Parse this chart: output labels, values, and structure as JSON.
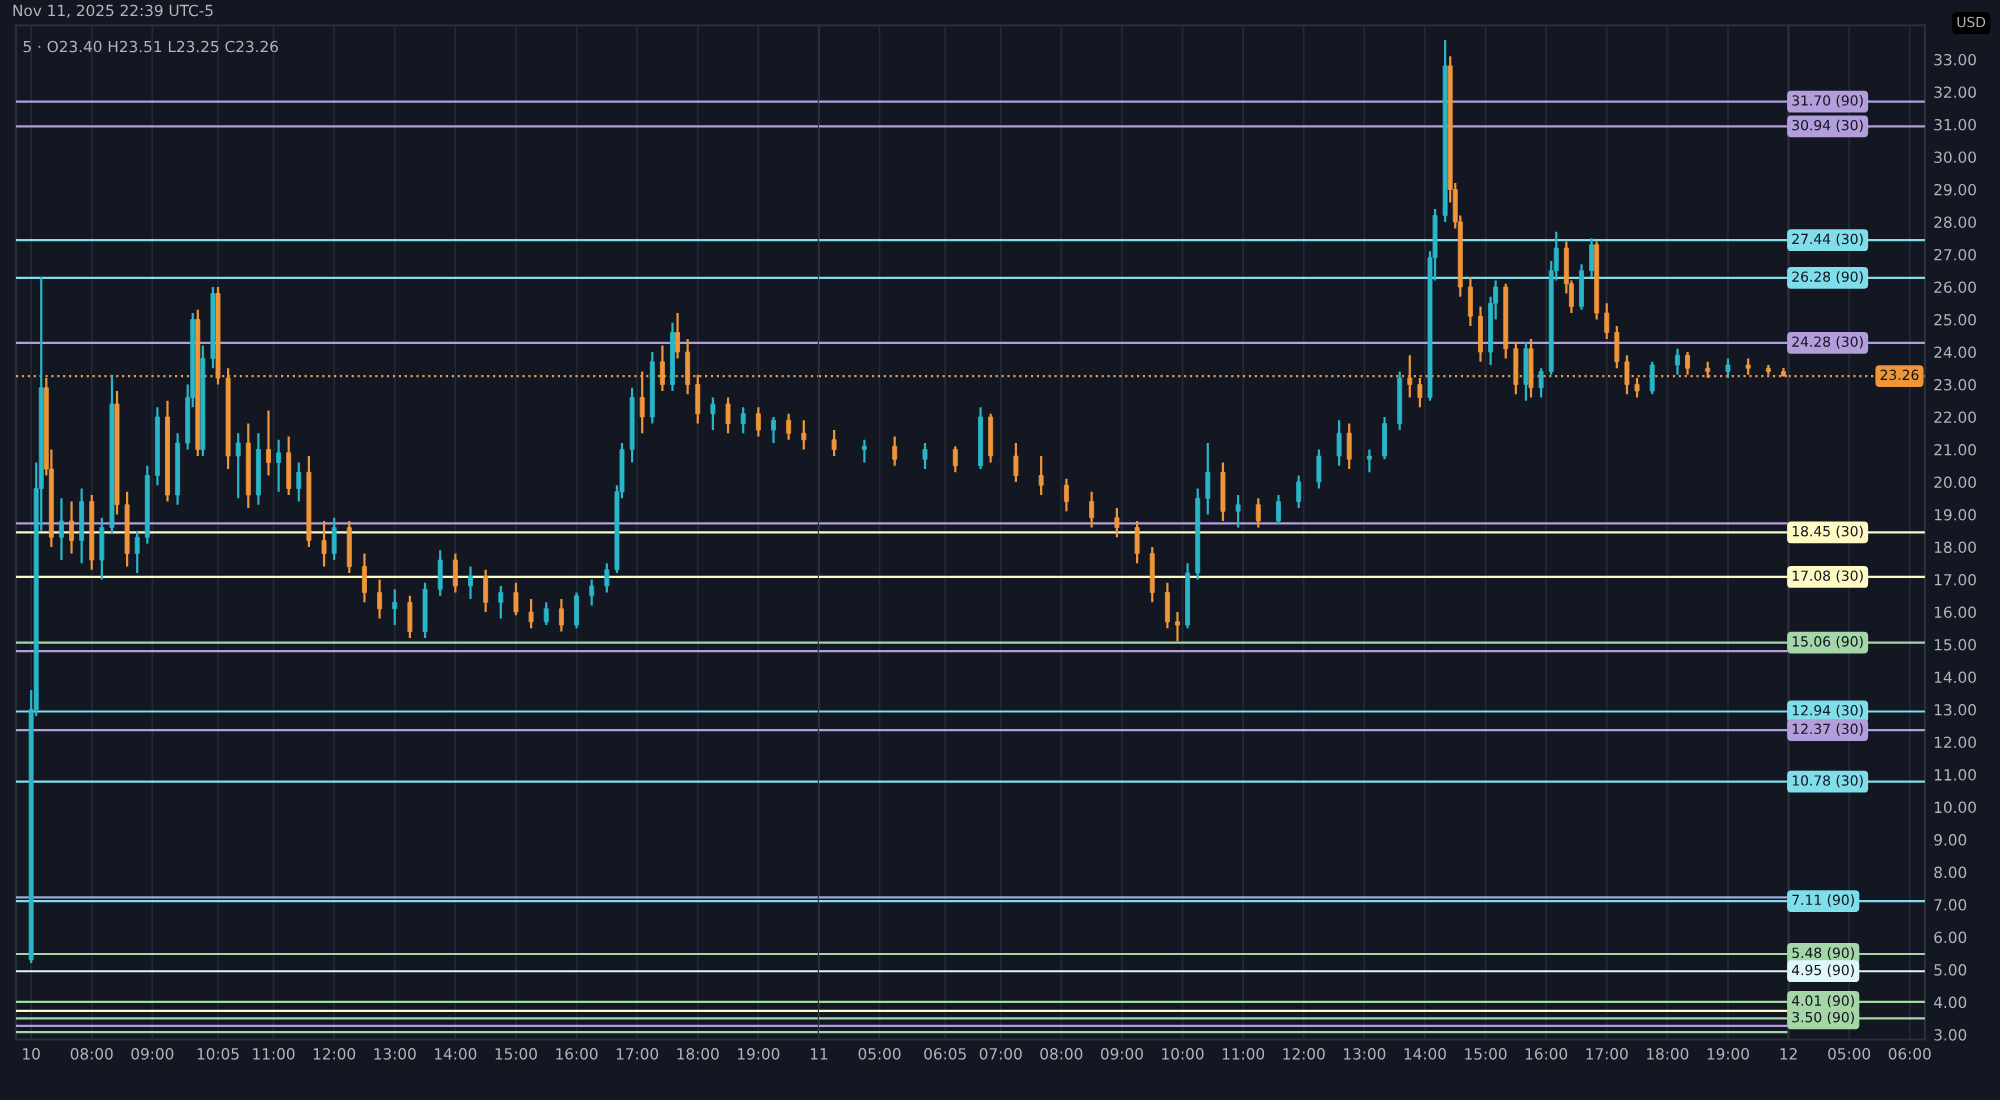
{
  "chart_data": [
    {
      "type": "candlestick",
      "annotations": [
        "Nov 11, 2025 22:39 UTC-5",
        "5 · O23.40 H23.51 L23.25 C23.26"
      ],
      "x": [
        "2025-11-10T07:00",
        "2025-11-10T07:05",
        "2025-11-10T07:10",
        "2025-11-10T07:15",
        "2025-11-10T07:20",
        "2025-11-10T07:30",
        "2025-11-10T07:40",
        "2025-11-10T07:50",
        "2025-11-10T08:00",
        "2025-11-10T08:10",
        "2025-11-10T08:20",
        "2025-11-10T08:25",
        "2025-11-10T08:35",
        "2025-11-10T08:45",
        "2025-11-10T08:55",
        "2025-11-10T09:05",
        "2025-11-10T09:15",
        "2025-11-10T09:25",
        "2025-11-10T09:35",
        "2025-11-10T09:40",
        "2025-11-10T09:45",
        "2025-11-10T09:50",
        "2025-11-10T10:00",
        "2025-11-10T10:05",
        "2025-11-10T10:15",
        "2025-11-10T10:25",
        "2025-11-10T10:35",
        "2025-11-10T10:45",
        "2025-11-10T10:55",
        "2025-11-10T11:05",
        "2025-11-10T11:15",
        "2025-11-10T11:25",
        "2025-11-10T11:35",
        "2025-11-10T11:50",
        "2025-11-10T12:00",
        "2025-11-10T12:15",
        "2025-11-10T12:30",
        "2025-11-10T12:45",
        "2025-11-10T13:00",
        "2025-11-10T13:15",
        "2025-11-10T13:30",
        "2025-11-10T13:45",
        "2025-11-10T14:00",
        "2025-11-10T14:15",
        "2025-11-10T14:30",
        "2025-11-10T14:45",
        "2025-11-10T15:00",
        "2025-11-10T15:15",
        "2025-11-10T15:30",
        "2025-11-10T15:45",
        "2025-11-10T16:00",
        "2025-11-10T16:15",
        "2025-11-10T16:30",
        "2025-11-10T16:40",
        "2025-11-10T16:45",
        "2025-11-10T16:55",
        "2025-11-10T17:05",
        "2025-11-10T17:15",
        "2025-11-10T17:25",
        "2025-11-10T17:35",
        "2025-11-10T17:40",
        "2025-11-10T17:50",
        "2025-11-10T18:00",
        "2025-11-10T18:15",
        "2025-11-10T18:30",
        "2025-11-10T18:45",
        "2025-11-10T19:00",
        "2025-11-10T19:15",
        "2025-11-10T19:30",
        "2025-11-10T19:45"
      ],
      "ohlc": [
        [
          5.3,
          13.6,
          5.2,
          13.0
        ],
        [
          13.0,
          20.6,
          12.8,
          19.8
        ],
        [
          19.8,
          26.3,
          18.5,
          22.9
        ],
        [
          22.9,
          23.2,
          20.2,
          20.4
        ],
        [
          20.4,
          21.0,
          18.0,
          18.3
        ],
        [
          18.3,
          19.5,
          17.6,
          18.8
        ],
        [
          18.8,
          19.4,
          17.8,
          18.2
        ],
        [
          18.2,
          19.8,
          17.5,
          19.4
        ],
        [
          19.4,
          19.6,
          17.3,
          17.6
        ],
        [
          17.6,
          18.9,
          17.0,
          18.6
        ],
        [
          18.6,
          23.3,
          18.4,
          22.4
        ],
        [
          22.4,
          22.8,
          19.0,
          19.3
        ],
        [
          19.3,
          19.7,
          17.4,
          17.8
        ],
        [
          17.8,
          18.5,
          17.2,
          18.3
        ],
        [
          18.3,
          20.5,
          18.1,
          20.2
        ],
        [
          20.2,
          22.3,
          19.9,
          22.0
        ],
        [
          22.0,
          22.5,
          19.4,
          19.6
        ],
        [
          19.6,
          21.5,
          19.3,
          21.2
        ],
        [
          21.2,
          23.0,
          21.0,
          22.6
        ],
        [
          22.6,
          25.2,
          22.3,
          25.0
        ],
        [
          25.0,
          25.3,
          20.8,
          21.0
        ],
        [
          21.0,
          24.2,
          20.8,
          23.8
        ],
        [
          23.8,
          26.0,
          23.5,
          25.8
        ],
        [
          25.8,
          26.0,
          23.0,
          23.2
        ],
        [
          23.2,
          23.5,
          20.4,
          20.8
        ],
        [
          20.8,
          21.5,
          19.5,
          21.2
        ],
        [
          21.2,
          21.8,
          19.2,
          19.6
        ],
        [
          19.6,
          21.5,
          19.3,
          21.0
        ],
        [
          21.0,
          22.2,
          20.2,
          20.6
        ],
        [
          20.6,
          21.3,
          19.7,
          20.9
        ],
        [
          20.9,
          21.4,
          19.6,
          19.8
        ],
        [
          19.8,
          20.6,
          19.4,
          20.3
        ],
        [
          20.3,
          20.8,
          18.0,
          18.2
        ],
        [
          18.2,
          18.8,
          17.4,
          17.8
        ],
        [
          17.8,
          18.9,
          17.6,
          18.6
        ],
        [
          18.6,
          18.8,
          17.2,
          17.4
        ],
        [
          17.4,
          17.8,
          16.3,
          16.6
        ],
        [
          16.6,
          17.0,
          15.8,
          16.1
        ],
        [
          16.1,
          16.7,
          15.6,
          16.3
        ],
        [
          16.3,
          16.5,
          15.2,
          15.4
        ],
        [
          15.4,
          16.9,
          15.2,
          16.7
        ],
        [
          16.7,
          17.9,
          16.5,
          17.6
        ],
        [
          17.6,
          17.8,
          16.6,
          16.8
        ],
        [
          16.8,
          17.4,
          16.4,
          17.1
        ],
        [
          17.1,
          17.3,
          16.0,
          16.3
        ],
        [
          16.3,
          16.8,
          15.8,
          16.6
        ],
        [
          16.6,
          16.9,
          15.9,
          16.0
        ],
        [
          16.0,
          16.4,
          15.5,
          15.7
        ],
        [
          15.7,
          16.3,
          15.6,
          16.1
        ],
        [
          16.1,
          16.4,
          15.4,
          15.6
        ],
        [
          15.6,
          16.6,
          15.5,
          16.5
        ],
        [
          16.5,
          17.0,
          16.2,
          16.8
        ],
        [
          16.8,
          17.5,
          16.6,
          17.3
        ],
        [
          17.3,
          19.9,
          17.2,
          19.7
        ],
        [
          19.7,
          21.2,
          19.5,
          21.0
        ],
        [
          21.0,
          22.9,
          20.6,
          22.6
        ],
        [
          22.6,
          23.4,
          21.5,
          22.0
        ],
        [
          22.0,
          24.0,
          21.8,
          23.7
        ],
        [
          23.7,
          24.2,
          22.8,
          23.0
        ],
        [
          23.0,
          24.9,
          22.8,
          24.6
        ],
        [
          24.6,
          25.2,
          23.8,
          24.0
        ],
        [
          24.0,
          24.4,
          22.7,
          23.0
        ],
        [
          23.0,
          23.3,
          21.8,
          22.1
        ],
        [
          22.1,
          22.6,
          21.6,
          22.4
        ],
        [
          22.4,
          22.6,
          21.5,
          21.8
        ],
        [
          21.8,
          22.3,
          21.5,
          22.1
        ],
        [
          22.1,
          22.3,
          21.4,
          21.6
        ],
        [
          21.6,
          22.0,
          21.2,
          21.9
        ],
        [
          21.9,
          22.1,
          21.3,
          21.5
        ],
        [
          21.5,
          21.9,
          21.0,
          21.3
        ]
      ],
      "colors": [
        "#29b6c8",
        "#29b6c8",
        "#29b6c8",
        "#f0963a",
        "#f0963a",
        "#29b6c8",
        "#f0963a",
        "#29b6c8",
        "#f0963a",
        "#29b6c8",
        "#29b6c8",
        "#f0963a",
        "#f0963a",
        "#29b6c8",
        "#29b6c8",
        "#29b6c8",
        "#f0963a",
        "#29b6c8",
        "#29b6c8",
        "#29b6c8",
        "#f0963a",
        "#29b6c8",
        "#29b6c8",
        "#f0963a",
        "#f0963a",
        "#29b6c8",
        "#f0963a",
        "#29b6c8",
        "#f0963a",
        "#29b6c8",
        "#f0963a",
        "#29b6c8",
        "#f0963a",
        "#f0963a",
        "#29b6c8",
        "#f0963a",
        "#f0963a",
        "#f0963a",
        "#29b6c8",
        "#f0963a",
        "#29b6c8",
        "#29b6c8",
        "#f0963a",
        "#29b6c8",
        "#f0963a",
        "#29b6c8",
        "#f0963a",
        "#f0963a",
        "#29b6c8",
        "#f0963a",
        "#29b6c8",
        "#29b6c8",
        "#29b6c8",
        "#29b6c8",
        "#29b6c8",
        "#29b6c8",
        "#f0963a",
        "#29b6c8",
        "#f0963a",
        "#29b6c8",
        "#f0963a",
        "#f0963a",
        "#f0963a",
        "#29b6c8",
        "#f0963a",
        "#29b6c8",
        "#f0963a",
        "#29b6c8",
        "#f0963a",
        "#f0963a"
      ],
      "xlim": [
        "2025-11-10T06:45",
        "2025-11-10T20:00"
      ],
      "xticks": [
        {
          "value": "2025-11-10T07:00",
          "label": "10"
        },
        {
          "value": "2025-11-10T08:00",
          "label": "08:00"
        },
        {
          "value": "2025-11-10T09:00",
          "label": "09:00"
        },
        {
          "value": "2025-11-10T10:05",
          "label": "10:05"
        },
        {
          "value": "2025-11-10T11:00",
          "label": "11:00"
        },
        {
          "value": "2025-11-10T12:00",
          "label": "12:00"
        },
        {
          "value": "2025-11-10T13:00",
          "label": "13:00"
        },
        {
          "value": "2025-11-10T14:00",
          "label": "14:00"
        },
        {
          "value": "2025-11-10T15:00",
          "label": "15:00"
        },
        {
          "value": "2025-11-10T16:00",
          "label": "16:00"
        },
        {
          "value": "2025-11-10T17:00",
          "label": "17:00"
        },
        {
          "value": "2025-11-10T18:00",
          "label": "18:00"
        },
        {
          "value": "2025-11-10T19:00",
          "label": "19:00"
        }
      ],
      "ylim": [
        2.85,
        34.05
      ],
      "tick_labels": "x",
      "ref_lines": [
        {
          "axis": "y",
          "value": 31.7,
          "color": "#b39ddb"
        },
        {
          "axis": "y",
          "value": 30.94,
          "color": "#b39ddb"
        },
        {
          "axis": "y",
          "value": 27.44,
          "color": "#80deea"
        },
        {
          "axis": "y",
          "value": 26.28,
          "color": "#80deea"
        },
        {
          "axis": "y",
          "value": 24.28,
          "color": "#b39ddb"
        },
        {
          "axis": "y",
          "value": 23.26,
          "color": "#f0963a",
          "line_style": "dotted"
        },
        {
          "axis": "y",
          "value": 18.73,
          "color": "#b39ddb"
        },
        {
          "axis": "y",
          "value": 18.45,
          "color": "#fff9c4"
        },
        {
          "axis": "y",
          "value": 17.08,
          "color": "#fff9c4"
        },
        {
          "axis": "y",
          "value": 15.06,
          "color": "#a5d6a7"
        },
        {
          "axis": "y",
          "value": 14.8,
          "color": "#b39ddb"
        },
        {
          "axis": "y",
          "value": 12.94,
          "color": "#80deea"
        },
        {
          "axis": "y",
          "value": 12.37,
          "color": "#b39ddb"
        },
        {
          "axis": "y",
          "value": 10.78,
          "color": "#80deea"
        },
        {
          "axis": "y",
          "value": 7.22,
          "color": "#9fa8da"
        },
        {
          "axis": "y",
          "value": 7.11,
          "color": "#80deea"
        },
        {
          "axis": "y",
          "value": 5.48,
          "color": "#a5d6a7"
        },
        {
          "axis": "y",
          "value": 4.95,
          "color": "#e0f7fa"
        },
        {
          "axis": "y",
          "value": 4.01,
          "color": "#a5d6a7"
        },
        {
          "axis": "y",
          "value": 3.73,
          "color": "#fff9c4"
        },
        {
          "axis": "y",
          "value": 3.5,
          "color": "#a5d6a7"
        },
        {
          "axis": "y",
          "value": 3.27,
          "color": "#b39ddb"
        },
        {
          "axis": "y",
          "value": 3.08,
          "color": "#a5d6a7"
        }
      ],
      "grid": "x",
      "legend": false
    },
    {
      "type": "candlestick",
      "x": [
        "2025-11-11T04:15",
        "2025-11-11T04:45",
        "2025-11-11T05:15",
        "2025-11-11T05:45",
        "2025-11-11T06:15",
        "2025-11-11T06:40",
        "2025-11-11T06:50",
        "2025-11-11T07:15",
        "2025-11-11T07:40",
        "2025-11-11T08:05",
        "2025-11-11T08:30",
        "2025-11-11T08:55",
        "2025-11-11T09:15",
        "2025-11-11T09:30",
        "2025-11-11T09:45",
        "2025-11-11T09:55",
        "2025-11-11T10:05",
        "2025-11-11T10:15",
        "2025-11-11T10:25",
        "2025-11-11T10:40",
        "2025-11-11T10:55",
        "2025-11-11T11:15",
        "2025-11-11T11:35",
        "2025-11-11T11:55",
        "2025-11-11T12:15",
        "2025-11-11T12:35",
        "2025-11-11T12:45",
        "2025-11-11T13:05",
        "2025-11-11T13:20",
        "2025-11-11T13:35",
        "2025-11-11T13:45",
        "2025-11-11T13:55",
        "2025-11-11T14:05",
        "2025-11-11T14:10",
        "2025-11-11T14:20",
        "2025-11-11T14:25",
        "2025-11-11T14:30",
        "2025-11-11T14:35",
        "2025-11-11T14:45",
        "2025-11-11T14:55",
        "2025-11-11T15:05",
        "2025-11-11T15:10",
        "2025-11-11T15:20",
        "2025-11-11T15:30",
        "2025-11-11T15:40",
        "2025-11-11T15:45",
        "2025-11-11T15:55",
        "2025-11-11T16:05",
        "2025-11-11T16:10",
        "2025-11-11T16:20",
        "2025-11-11T16:25",
        "2025-11-11T16:35",
        "2025-11-11T16:45",
        "2025-11-11T16:50",
        "2025-11-11T17:00",
        "2025-11-11T17:10",
        "2025-11-11T17:20",
        "2025-11-11T17:30",
        "2025-11-11T17:45",
        "2025-11-11T18:10",
        "2025-11-11T18:20",
        "2025-11-11T18:40",
        "2025-11-11T19:00",
        "2025-11-11T19:20",
        "2025-11-11T19:40",
        "2025-11-11T19:55"
      ],
      "ohlc": [
        [
          21.3,
          21.6,
          20.8,
          21.0
        ],
        [
          21.0,
          21.3,
          20.6,
          21.1
        ],
        [
          21.1,
          21.4,
          20.5,
          20.7
        ],
        [
          20.7,
          21.2,
          20.4,
          21.0
        ],
        [
          21.0,
          21.1,
          20.3,
          20.5
        ],
        [
          20.5,
          22.3,
          20.4,
          22.0
        ],
        [
          22.0,
          22.1,
          20.6,
          20.8
        ],
        [
          20.8,
          21.2,
          20.0,
          20.2
        ],
        [
          20.2,
          20.8,
          19.6,
          19.9
        ],
        [
          19.9,
          20.1,
          19.1,
          19.4
        ],
        [
          19.4,
          19.7,
          18.6,
          18.9
        ],
        [
          18.9,
          19.2,
          18.3,
          18.6
        ],
        [
          18.6,
          18.8,
          17.5,
          17.8
        ],
        [
          17.8,
          18.0,
          16.3,
          16.6
        ],
        [
          16.6,
          16.9,
          15.5,
          15.7
        ],
        [
          15.7,
          16.0,
          15.1,
          15.6
        ],
        [
          15.6,
          17.5,
          15.5,
          17.2
        ],
        [
          17.2,
          19.8,
          17.0,
          19.5
        ],
        [
          19.5,
          21.2,
          19.0,
          20.3
        ],
        [
          20.3,
          20.6,
          18.8,
          19.1
        ],
        [
          19.1,
          19.6,
          18.6,
          19.3
        ],
        [
          19.3,
          19.5,
          18.6,
          18.8
        ],
        [
          18.8,
          19.6,
          18.7,
          19.4
        ],
        [
          19.4,
          20.2,
          19.2,
          20.0
        ],
        [
          20.0,
          21.0,
          19.8,
          20.8
        ],
        [
          20.8,
          21.9,
          20.5,
          21.5
        ],
        [
          21.5,
          21.8,
          20.4,
          20.7
        ],
        [
          20.7,
          21.0,
          20.3,
          20.8
        ],
        [
          20.8,
          22.0,
          20.7,
          21.8
        ],
        [
          21.8,
          23.4,
          21.6,
          23.2
        ],
        [
          23.2,
          23.9,
          22.6,
          23.0
        ],
        [
          23.0,
          23.2,
          22.3,
          22.6
        ],
        [
          22.6,
          27.1,
          22.5,
          26.9
        ],
        [
          26.9,
          28.4,
          26.2,
          28.2
        ],
        [
          28.2,
          33.6,
          28.0,
          32.8
        ],
        [
          32.8,
          33.1,
          28.6,
          29.0
        ],
        [
          29.0,
          29.2,
          27.8,
          28.0
        ],
        [
          28.0,
          28.2,
          25.7,
          26.0
        ],
        [
          26.0,
          26.3,
          24.8,
          25.1
        ],
        [
          25.1,
          25.4,
          23.7,
          24.0
        ],
        [
          24.0,
          25.7,
          23.6,
          25.5
        ],
        [
          25.5,
          26.2,
          25.0,
          26.0
        ],
        [
          26.0,
          26.1,
          23.8,
          24.1
        ],
        [
          24.1,
          24.3,
          22.7,
          23.0
        ],
        [
          23.0,
          24.3,
          22.5,
          24.1
        ],
        [
          24.1,
          24.4,
          22.6,
          22.9
        ],
        [
          22.9,
          23.5,
          22.6,
          23.4
        ],
        [
          23.4,
          26.8,
          23.3,
          26.5
        ],
        [
          26.5,
          27.7,
          26.2,
          27.2
        ],
        [
          27.2,
          27.4,
          25.8,
          26.1
        ],
        [
          26.1,
          26.2,
          25.2,
          25.4
        ],
        [
          25.4,
          26.7,
          25.3,
          26.5
        ],
        [
          26.5,
          27.5,
          26.3,
          27.3
        ],
        [
          27.3,
          27.4,
          25.0,
          25.2
        ],
        [
          25.2,
          25.5,
          24.4,
          24.6
        ],
        [
          24.6,
          24.8,
          23.5,
          23.7
        ],
        [
          23.7,
          23.9,
          22.7,
          23.0
        ],
        [
          23.0,
          23.2,
          22.6,
          22.8
        ],
        [
          22.8,
          23.7,
          22.7,
          23.6
        ],
        [
          23.6,
          24.1,
          23.3,
          23.9
        ],
        [
          23.9,
          24.0,
          23.3,
          23.5
        ],
        [
          23.5,
          23.7,
          23.2,
          23.4
        ],
        [
          23.4,
          23.8,
          23.2,
          23.6
        ],
        [
          23.6,
          23.8,
          23.3,
          23.5
        ],
        [
          23.5,
          23.6,
          23.3,
          23.4
        ],
        [
          23.4,
          23.51,
          23.25,
          23.26
        ]
      ],
      "colors": [
        "#f0963a",
        "#29b6c8",
        "#f0963a",
        "#29b6c8",
        "#f0963a",
        "#29b6c8",
        "#f0963a",
        "#f0963a",
        "#f0963a",
        "#f0963a",
        "#f0963a",
        "#f0963a",
        "#f0963a",
        "#f0963a",
        "#f0963a",
        "#f0963a",
        "#29b6c8",
        "#29b6c8",
        "#29b6c8",
        "#f0963a",
        "#29b6c8",
        "#f0963a",
        "#29b6c8",
        "#29b6c8",
        "#29b6c8",
        "#29b6c8",
        "#f0963a",
        "#29b6c8",
        "#29b6c8",
        "#29b6c8",
        "#f0963a",
        "#f0963a",
        "#29b6c8",
        "#29b6c8",
        "#29b6c8",
        "#f0963a",
        "#f0963a",
        "#f0963a",
        "#f0963a",
        "#f0963a",
        "#29b6c8",
        "#29b6c8",
        "#f0963a",
        "#f0963a",
        "#29b6c8",
        "#f0963a",
        "#29b6c8",
        "#29b6c8",
        "#29b6c8",
        "#f0963a",
        "#f0963a",
        "#29b6c8",
        "#29b6c8",
        "#f0963a",
        "#f0963a",
        "#f0963a",
        "#f0963a",
        "#f0963a",
        "#29b6c8",
        "#29b6c8",
        "#f0963a",
        "#f0963a",
        "#29b6c8",
        "#f0963a",
        "#f0963a",
        "#f0963a"
      ],
      "xlim": [
        "2025-11-11T04:00",
        "2025-11-11T20:00"
      ],
      "xticks": [
        {
          "value": "2025-11-11T04:00",
          "label": "11"
        },
        {
          "value": "2025-11-11T05:00",
          "label": "05:00"
        },
        {
          "value": "2025-11-11T06:05",
          "label": "06:05"
        },
        {
          "value": "2025-11-11T07:00",
          "label": "07:00"
        },
        {
          "value": "2025-11-11T08:00",
          "label": "08:00"
        },
        {
          "value": "2025-11-11T09:00",
          "label": "09:00"
        },
        {
          "value": "2025-11-11T10:00",
          "label": "10:00"
        },
        {
          "value": "2025-11-11T11:00",
          "label": "11:00"
        },
        {
          "value": "2025-11-11T12:00",
          "label": "12:00"
        },
        {
          "value": "2025-11-11T13:00",
          "label": "13:00"
        },
        {
          "value": "2025-11-11T14:00",
          "label": "14:00"
        },
        {
          "value": "2025-11-11T15:00",
          "label": "15:00"
        },
        {
          "value": "2025-11-11T16:00",
          "label": "16:00"
        },
        {
          "value": "2025-11-11T17:00",
          "label": "17:00"
        },
        {
          "value": "2025-11-11T18:00",
          "label": "18:00"
        },
        {
          "value": "2025-11-11T19:00",
          "label": "19:00"
        }
      ],
      "ylim": [
        2.85,
        34.05
      ],
      "tick_labels": "x",
      "ref_lines": [
        {
          "axis": "y",
          "value": 31.7,
          "color": "#b39ddb"
        },
        {
          "axis": "y",
          "value": 30.94,
          "color": "#b39ddb"
        },
        {
          "axis": "y",
          "value": 27.44,
          "color": "#80deea"
        },
        {
          "axis": "y",
          "value": 26.28,
          "color": "#80deea"
        },
        {
          "axis": "y",
          "value": 24.28,
          "color": "#b39ddb"
        },
        {
          "axis": "y",
          "value": 23.26,
          "color": "#f0963a",
          "line_style": "dotted"
        },
        {
          "axis": "y",
          "value": 18.73,
          "color": "#b39ddb"
        },
        {
          "axis": "y",
          "value": 18.45,
          "color": "#fff9c4"
        },
        {
          "axis": "y",
          "value": 17.08,
          "color": "#fff9c4"
        },
        {
          "axis": "y",
          "value": 15.06,
          "color": "#a5d6a7"
        },
        {
          "axis": "y",
          "value": 14.8,
          "color": "#b39ddb"
        },
        {
          "axis": "y",
          "value": 12.94,
          "color": "#80deea"
        },
        {
          "axis": "y",
          "value": 12.37,
          "color": "#b39ddb"
        },
        {
          "axis": "y",
          "value": 10.78,
          "color": "#80deea"
        },
        {
          "axis": "y",
          "value": 7.22,
          "color": "#9fa8da"
        },
        {
          "axis": "y",
          "value": 7.11,
          "color": "#80deea"
        },
        {
          "axis": "y",
          "value": 5.48,
          "color": "#a5d6a7"
        },
        {
          "axis": "y",
          "value": 4.95,
          "color": "#e0f7fa"
        },
        {
          "axis": "y",
          "value": 4.01,
          "color": "#a5d6a7"
        },
        {
          "axis": "y",
          "value": 3.73,
          "color": "#fff9c4"
        },
        {
          "axis": "y",
          "value": 3.5,
          "color": "#a5d6a7"
        },
        {
          "axis": "y",
          "value": 3.27,
          "color": "#b39ddb"
        },
        {
          "axis": "y",
          "value": 3.08,
          "color": "#a5d6a7"
        }
      ],
      "grid": "x"
    },
    {
      "type": "candlestick",
      "ylabel": "USD",
      "xlim": [
        "2025-11-12T04:00",
        "2025-11-12T06:15"
      ],
      "xticks": [
        {
          "value": "2025-11-12T04:00",
          "label": "12"
        },
        {
          "value": "2025-11-12T05:00",
          "label": "05:00"
        },
        {
          "value": "2025-11-12T06:00",
          "label": "06:00"
        }
      ],
      "ylim": [
        2.85,
        34.05
      ],
      "yticks": [
        {
          "value": 3,
          "label": "3.00"
        },
        {
          "value": 4,
          "label": "4.00"
        },
        {
          "value": 5,
          "label": "5.00"
        },
        {
          "value": 6,
          "label": "6.00"
        },
        {
          "value": 7,
          "label": "7.00"
        },
        {
          "value": 8,
          "label": "8.00"
        },
        {
          "value": 9,
          "label": "9.00"
        },
        {
          "value": 10,
          "label": "10.00"
        },
        {
          "value": 11,
          "label": "11.00"
        },
        {
          "value": 12,
          "label": "12.00"
        },
        {
          "value": 13,
          "label": "13.00"
        },
        {
          "value": 14,
          "label": "14.00"
        },
        {
          "value": 15,
          "label": "15.00"
        },
        {
          "value": 16,
          "label": "16.00"
        },
        {
          "value": 17,
          "label": "17.00"
        },
        {
          "value": 18,
          "label": "18.00"
        },
        {
          "value": 19,
          "label": "19.00"
        },
        {
          "value": 20,
          "label": "20.00"
        },
        {
          "value": 21,
          "label": "21.00"
        },
        {
          "value": 22,
          "label": "22.00"
        },
        {
          "value": 23,
          "label": "23.00"
        },
        {
          "value": 24,
          "label": "24.00"
        },
        {
          "value": 25,
          "label": "25.00"
        },
        {
          "value": 26,
          "label": "26.00"
        },
        {
          "value": 27,
          "label": "27.00"
        },
        {
          "value": 28,
          "label": "28.00"
        },
        {
          "value": 29,
          "label": "29.00"
        },
        {
          "value": 30,
          "label": "30.00"
        },
        {
          "value": 31,
          "label": "31.00"
        },
        {
          "value": 32,
          "label": "32.00"
        },
        {
          "value": 33,
          "label": "33.00"
        }
      ],
      "ref_lines": [
        {
          "axis": "y",
          "value": 31.7,
          "label": "31.70 (90)",
          "color": "#b39ddb"
        },
        {
          "axis": "y",
          "value": 30.94,
          "label": "30.94 (30)",
          "color": "#b39ddb"
        },
        {
          "axis": "y",
          "value": 27.44,
          "label": "27.44 (30)",
          "color": "#80deea"
        },
        {
          "axis": "y",
          "value": 26.28,
          "label": "26.28 (90)",
          "color": "#80deea"
        },
        {
          "axis": "y",
          "value": 24.28,
          "label": "24.28 (30)",
          "color": "#b39ddb"
        },
        {
          "axis": "y",
          "value": 23.26,
          "label": "23.26",
          "color": "#f0963a",
          "line_style": "dotted"
        },
        {
          "axis": "y",
          "value": 18.45,
          "label": "18.45 (30)",
          "color": "#fff9c4"
        },
        {
          "axis": "y",
          "value": 17.08,
          "label": "17.08 (30)",
          "color": "#fff9c4"
        },
        {
          "axis": "y",
          "value": 15.06,
          "label": "15.06 (90)",
          "color": "#a5d6a7"
        },
        {
          "axis": "y",
          "value": 12.94,
          "label": "12.94 (30)",
          "color": "#80deea"
        },
        {
          "axis": "y",
          "value": 12.37,
          "label": "12.37 (30)",
          "color": "#b39ddb"
        },
        {
          "axis": "y",
          "value": 10.78,
          "label": "10.78 (30)",
          "color": "#80deea"
        },
        {
          "axis": "y",
          "value": 7.11,
          "label": "7.11 (90)",
          "color": "#80deea"
        },
        {
          "axis": "y",
          "value": 5.48,
          "label": "5.48 (90)",
          "color": "#a5d6a7"
        },
        {
          "axis": "y",
          "value": 4.95,
          "label": "4.95 (90)",
          "color": "#e0f7fa"
        },
        {
          "axis": "y",
          "value": 4.01,
          "label": "4.01 (90)",
          "color": "#a5d6a7"
        },
        {
          "axis": "y",
          "value": 3.5,
          "label": "3.50 (90)",
          "color": "#a5d6a7"
        }
      ],
      "grid": "x"
    }
  ]
}
